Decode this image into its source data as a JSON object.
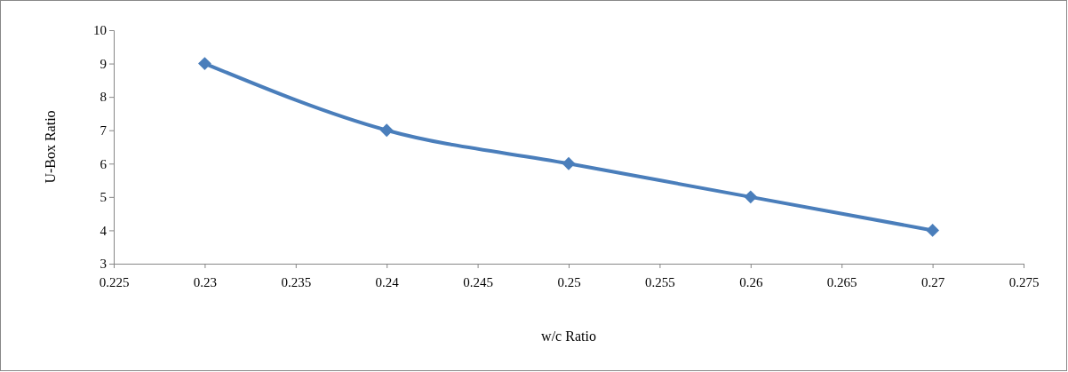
{
  "chart_data": {
    "type": "line",
    "xlabel": "w/c Ratio",
    "ylabel": "U-Box Ratio",
    "x": [
      0.23,
      0.24,
      0.25,
      0.26,
      0.27
    ],
    "series": [
      {
        "color": "#4a7ebb",
        "values": [
          9,
          7,
          6,
          5,
          4
        ]
      }
    ],
    "xlim": [
      0.225,
      0.275
    ],
    "xticks": [
      0.225,
      0.23,
      0.235,
      0.24,
      0.245,
      0.25,
      0.255,
      0.26,
      0.265,
      0.27,
      0.275
    ],
    "ylim": [
      3,
      10
    ],
    "yticks": [
      3,
      4,
      5,
      6,
      7,
      8,
      9,
      10
    ],
    "marker": "diamond",
    "line_style": "solid"
  }
}
